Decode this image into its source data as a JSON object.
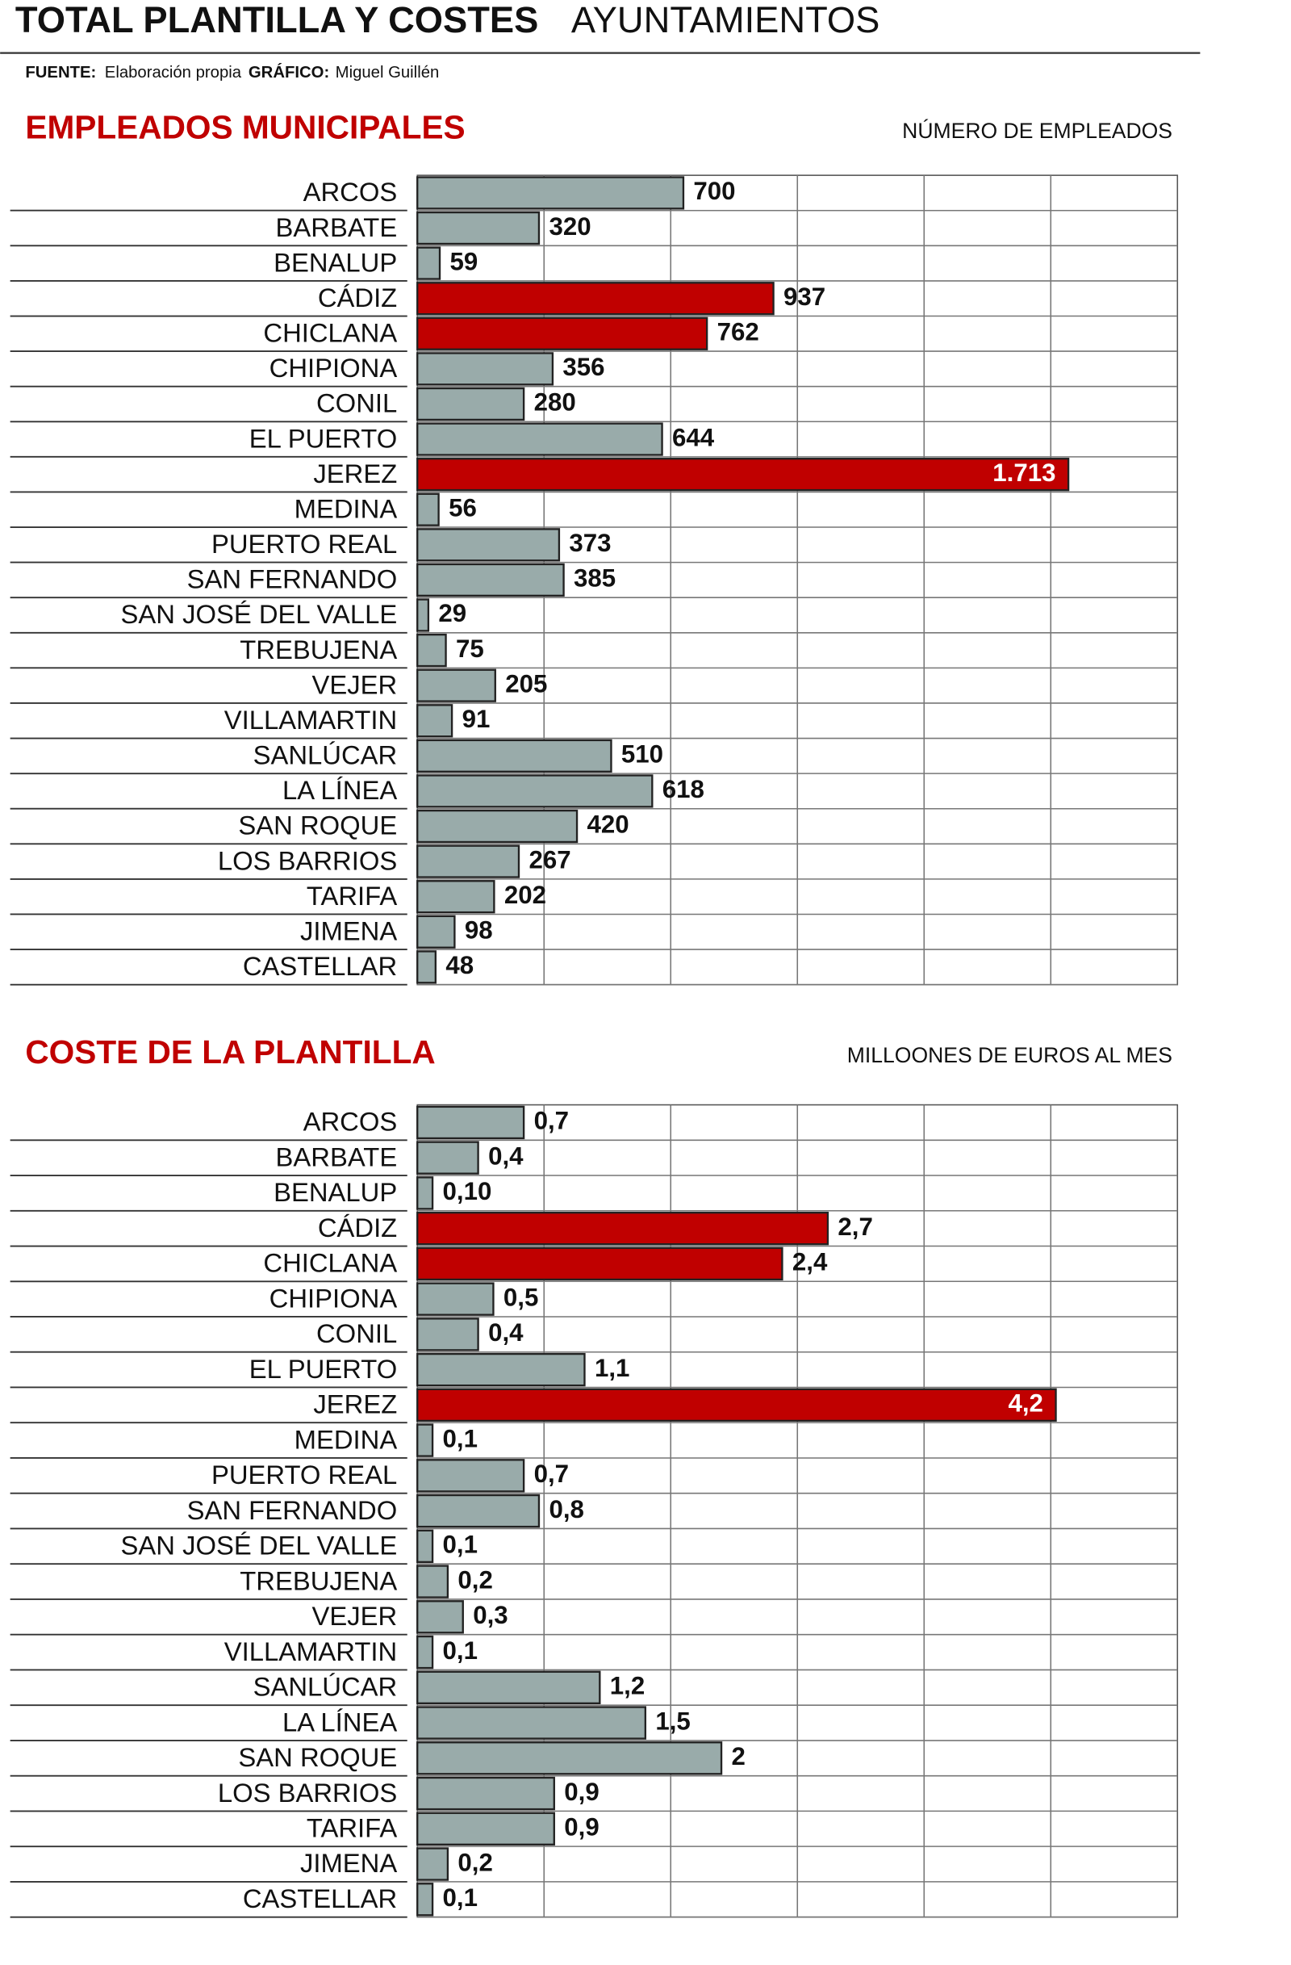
{
  "header": {
    "title": "TOTAL PLANTILLA Y COSTES",
    "subtitle": "AYUNTAMIENTOS",
    "source_label": "FUENTE:",
    "source": "Elaboración propia",
    "graphic_label": "GRÁFICO:",
    "graphic": "Miguel Guillén"
  },
  "chart_data": [
    {
      "type": "bar",
      "orientation": "horizontal",
      "title": "EMPLEADOS MUNICIPALES",
      "unit_label": "NÚMERO DE EMPLEADOS",
      "categories": [
        "ARCOS",
        "BARBATE",
        "BENALUP",
        "CÁDIZ",
        "CHICLANA",
        "CHIPIONA",
        "CONIL",
        "EL PUERTO",
        "JEREZ",
        "MEDINA",
        "PUERTO REAL",
        "SAN FERNANDO",
        "SAN JOSÉ DEL VALLE",
        "TREBUJENA",
        "VEJER",
        "VILLAMARTIN",
        "SANLÚCAR",
        "LA LÍNEA",
        "SAN ROQUE",
        "LOS BARRIOS",
        "TARIFA",
        "JIMENA",
        "CASTELLAR"
      ],
      "values": [
        700,
        320,
        59,
        937,
        762,
        356,
        280,
        644,
        1713,
        56,
        373,
        385,
        29,
        75,
        205,
        91,
        510,
        618,
        420,
        267,
        202,
        98,
        48
      ],
      "value_labels": [
        "700",
        "320",
        "59",
        "937",
        "762",
        "356",
        "280",
        "644",
        "1.713",
        "56",
        "373",
        "385",
        "29",
        "75",
        "205",
        "91",
        "510",
        "618",
        "420",
        "267",
        "202",
        "98",
        "48"
      ],
      "colors": [
        "#99abaa",
        "#99abaa",
        "#99abaa",
        "#c00000",
        "#c00000",
        "#99abaa",
        "#99abaa",
        "#99abaa",
        "#c00000",
        "#99abaa",
        "#99abaa",
        "#99abaa",
        "#99abaa",
        "#99abaa",
        "#99abaa",
        "#99abaa",
        "#99abaa",
        "#99abaa",
        "#99abaa",
        "#99abaa",
        "#99abaa",
        "#99abaa",
        "#99abaa"
      ],
      "xlim": [
        0,
        2000
      ]
    },
    {
      "type": "bar",
      "orientation": "horizontal",
      "title": "COSTE DE LA PLANTILLA",
      "unit_label": "MILLOONES DE EUROS AL MES",
      "categories": [
        "ARCOS",
        "BARBATE",
        "BENALUP",
        "CÁDIZ",
        "CHICLANA",
        "CHIPIONA",
        "CONIL",
        "EL PUERTO",
        "JEREZ",
        "MEDINA",
        "PUERTO REAL",
        "SAN FERNANDO",
        "SAN JOSÉ DEL VALLE",
        "TREBUJENA",
        "VEJER",
        "VILLAMARTIN",
        "SANLÚCAR",
        "LA LÍNEA",
        "SAN ROQUE",
        "LOS BARRIOS",
        "TARIFA",
        "JIMENA",
        "CASTELLAR"
      ],
      "values": [
        0.7,
        0.4,
        0.1,
        2.7,
        2.4,
        0.5,
        0.4,
        1.1,
        4.2,
        0.1,
        0.7,
        0.8,
        0.1,
        0.2,
        0.3,
        0.1,
        1.2,
        1.5,
        2,
        0.9,
        0.9,
        0.2,
        0.1
      ],
      "value_labels": [
        "0,7",
        "0,4",
        "0,10",
        "2,7",
        "2,4",
        "0,5",
        "0,4",
        "1,1",
        "4,2",
        "0,1",
        "0,7",
        "0,8",
        "0,1",
        "0,2",
        "0,3",
        "0,1",
        "1,2",
        "1,5",
        "2",
        "0,9",
        "0,9",
        "0,2",
        "0,1"
      ],
      "colors": [
        "#99abaa",
        "#99abaa",
        "#99abaa",
        "#c00000",
        "#c00000",
        "#99abaa",
        "#99abaa",
        "#99abaa",
        "#c00000",
        "#99abaa",
        "#99abaa",
        "#99abaa",
        "#99abaa",
        "#99abaa",
        "#99abaa",
        "#99abaa",
        "#99abaa",
        "#99abaa",
        "#99abaa",
        "#99abaa",
        "#99abaa",
        "#99abaa",
        "#99abaa"
      ],
      "xlim": [
        0,
        5
      ]
    }
  ]
}
